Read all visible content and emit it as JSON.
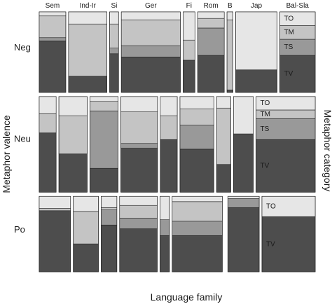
{
  "chart_data": {
    "type": "mosaic",
    "xlabel": "Language family",
    "ylabel": "Metaphor valence",
    "y2label": "Metaphor category",
    "stack_order_bottom_to_top": [
      "TV",
      "TS",
      "TM",
      "TO"
    ],
    "category_colors": {
      "TV": "#4d4d4d",
      "TS": "#999999",
      "TM": "#c4c4c4",
      "TO": "#e6e6e6"
    },
    "border_color": "#222222",
    "rows": [
      {
        "name": "Neg",
        "groups": [
          {
            "family": "Sem",
            "label": "Sem",
            "TV": 0.64,
            "TS": 0.04,
            "TM": 0.27,
            "TO": 0.05
          },
          {
            "family": "Ind-Ir",
            "label": "Ind-Ir",
            "TV": 0.2,
            "TS": 0.0,
            "TM": 0.65,
            "TO": 0.15
          },
          {
            "family": "Si",
            "label": "Si",
            "TV": 0.48,
            "TS": 0.07,
            "TM": 0.3,
            "TO": 0.15
          },
          {
            "family": "Ger",
            "label": "Ger",
            "TV": 0.44,
            "TS": 0.14,
            "TM": 0.32,
            "TO": 0.1
          },
          {
            "family": "Fi",
            "label": "Fi",
            "TV": 0.4,
            "TS": 0.0,
            "TM": 0.25,
            "TO": 0.35
          },
          {
            "family": "Rom",
            "label": "Rom",
            "TV": 0.46,
            "TS": 0.34,
            "TM": 0.12,
            "TO": 0.08
          },
          {
            "family": "B",
            "label": "B",
            "TV": 0.03,
            "TS": 0.0,
            "TM": 0.87,
            "TO": 0.1
          },
          {
            "family": "Jap",
            "label": "Jap",
            "TV": 0.28,
            "TS": 0.0,
            "TM": 0.0,
            "TO": 0.72
          },
          {
            "family": "Bal-Sla",
            "label": "Bal-Sla",
            "TV": 0.46,
            "TS": 0.2,
            "TM": 0.17,
            "TO": 0.17
          }
        ]
      },
      {
        "name": "Neu",
        "groups": [
          {
            "family": "Sem",
            "label": "",
            "TV": 0.62,
            "TS": 0.0,
            "TM": 0.2,
            "TO": 0.18
          },
          {
            "family": "Ind-Ir",
            "label": "",
            "TV": 0.4,
            "TS": 0.0,
            "TM": 0.4,
            "TO": 0.2
          },
          {
            "family": "Si",
            "label": "",
            "TV": 0.25,
            "TS": 0.6,
            "TM": 0.1,
            "TO": 0.05
          },
          {
            "family": "Ger",
            "label": "",
            "TV": 0.46,
            "TS": 0.05,
            "TM": 0.33,
            "TO": 0.16
          },
          {
            "family": "Fi",
            "label": "",
            "TV": 0.55,
            "TS": 0.0,
            "TM": 0.25,
            "TO": 0.2
          },
          {
            "family": "Rom",
            "label": "",
            "TV": 0.45,
            "TS": 0.25,
            "TM": 0.17,
            "TO": 0.13
          },
          {
            "family": "B",
            "label": "",
            "TV": 0.29,
            "TS": 0.0,
            "TM": 0.59,
            "TO": 0.12
          },
          {
            "family": "Jap",
            "label": "",
            "TV": 0.61,
            "TS": 0.0,
            "TM": 0.0,
            "TO": 0.39
          },
          {
            "family": "Bal-Sla",
            "label": "",
            "TV": 0.55,
            "TS": 0.22,
            "TM": 0.09,
            "TO": 0.14
          }
        ]
      },
      {
        "name": "Po",
        "groups": [
          {
            "family": "Sem",
            "label": "",
            "TV": 0.81,
            "TS": 0.0,
            "TM": 0.03,
            "TO": 0.16
          },
          {
            "family": "Ind-Ir",
            "label": "",
            "TV": 0.37,
            "TS": 0.0,
            "TM": 0.43,
            "TO": 0.2
          },
          {
            "family": "Si",
            "label": "",
            "TV": 0.62,
            "TS": 0.2,
            "TM": 0.03,
            "TO": 0.15
          },
          {
            "family": "Ger",
            "label": "",
            "TV": 0.57,
            "TS": 0.14,
            "TM": 0.17,
            "TO": 0.12
          },
          {
            "family": "Fi",
            "label": "",
            "TV": 0.48,
            "TS": 0.21,
            "TM": 0.0,
            "TO": 0.31
          },
          {
            "family": "Rom",
            "label": "",
            "TV": 0.48,
            "TS": 0.19,
            "TM": 0.26,
            "TO": 0.07
          },
          {
            "family": "B",
            "label": "",
            "TV": 0.0,
            "TS": 0.0,
            "TM": 0.0,
            "TO": 0.0
          },
          {
            "family": "Jap",
            "label": "",
            "TV": 0.85,
            "TS": 0.12,
            "TM": 0.0,
            "TO": 0.03
          },
          {
            "family": "Bal-Sla",
            "label": "",
            "TV": 0.73,
            "TS": 0.0,
            "TM": 0.0,
            "TO": 0.27
          }
        ]
      }
    ],
    "row_shares": [
      0.32,
      0.38,
      0.3
    ],
    "col_shares": [
      [
        0.09,
        0.13,
        0.03,
        0.2,
        0.04,
        0.09,
        0.02,
        0.14,
        0.12
      ],
      [
        0.06,
        0.1,
        0.1,
        0.13,
        0.06,
        0.12,
        0.05,
        0.07,
        0.21
      ],
      [
        0.1,
        0.08,
        0.05,
        0.12,
        0.03,
        0.16,
        0.0,
        0.1,
        0.17
      ]
    ]
  }
}
